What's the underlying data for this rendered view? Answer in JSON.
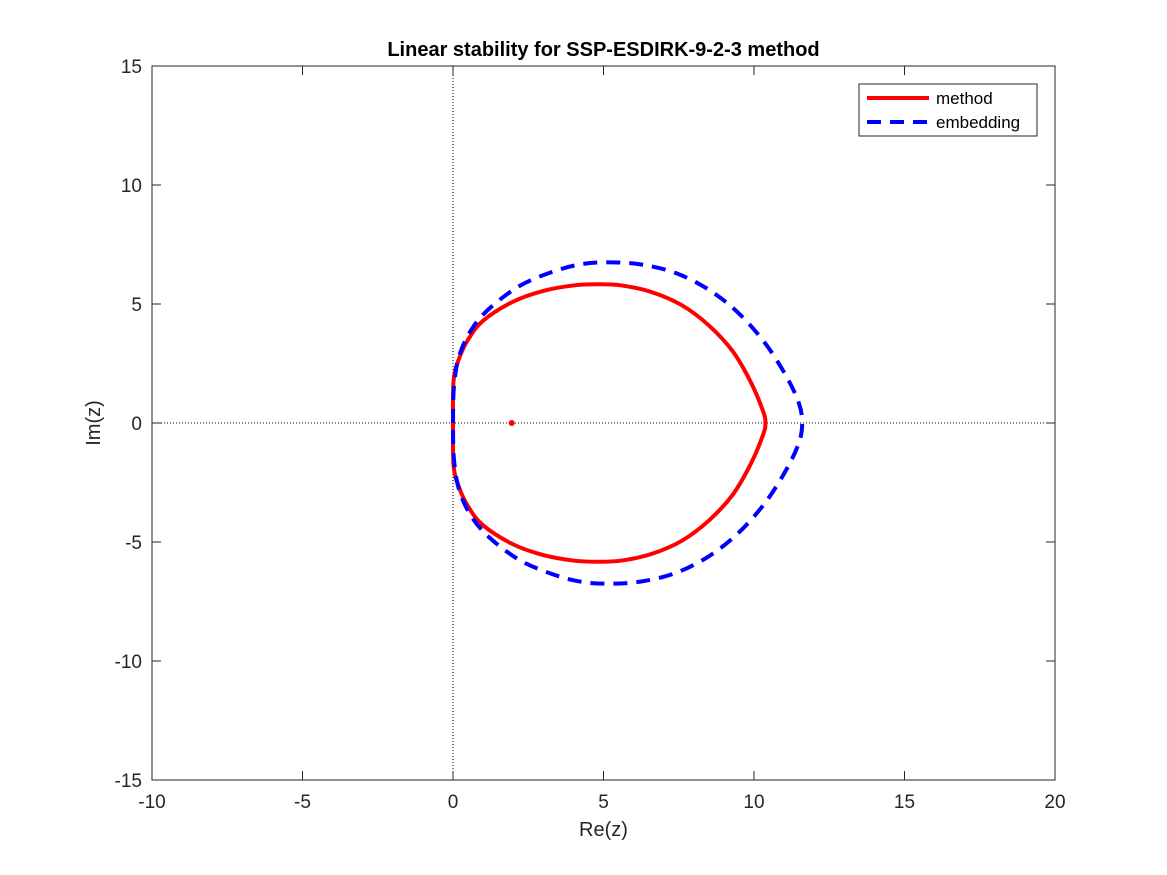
{
  "chart_data": {
    "type": "line",
    "title": "Linear stability for SSP-ESDIRK-9-2-3 method",
    "xlabel": "Re(z)",
    "ylabel": "Im(z)",
    "xlim": [
      -10,
      20
    ],
    "ylim": [
      -15,
      15
    ],
    "xticks": [
      -10,
      -5,
      0,
      5,
      10,
      15,
      20
    ],
    "yticks": [
      -15,
      -10,
      -5,
      0,
      5,
      10,
      15
    ],
    "xtick_labels": [
      "-10",
      "-5",
      "0",
      "5",
      "10",
      "15",
      "20"
    ],
    "ytick_labels": [
      "-15",
      "-10",
      "-5",
      "0",
      "5",
      "10",
      "15"
    ],
    "grid": false,
    "legend_position": "top-right",
    "reference_lines": [
      {
        "orientation": "vertical",
        "value": 0,
        "style": "dotted"
      },
      {
        "orientation": "horizontal",
        "value": 0,
        "style": "dotted"
      }
    ],
    "series": [
      {
        "name": "method",
        "color": "#ff0000",
        "style": "solid",
        "points": [
          [
            0,
            0
          ],
          [
            0.02,
            1.8
          ],
          [
            0.2,
            2.7
          ],
          [
            0.5,
            3.5
          ],
          [
            1.0,
            4.3
          ],
          [
            2.0,
            5.1
          ],
          [
            3.0,
            5.55
          ],
          [
            4.0,
            5.78
          ],
          [
            4.8,
            5.83
          ],
          [
            5.6,
            5.78
          ],
          [
            6.6,
            5.5
          ],
          [
            7.6,
            4.95
          ],
          [
            8.5,
            4.1
          ],
          [
            9.3,
            3.0
          ],
          [
            9.9,
            1.7
          ],
          [
            10.3,
            0.5
          ],
          [
            10.38,
            0
          ],
          [
            10.3,
            -0.5
          ],
          [
            9.9,
            -1.7
          ],
          [
            9.3,
            -3.0
          ],
          [
            8.5,
            -4.1
          ],
          [
            7.6,
            -4.95
          ],
          [
            6.6,
            -5.5
          ],
          [
            5.6,
            -5.78
          ],
          [
            4.8,
            -5.83
          ],
          [
            4.0,
            -5.78
          ],
          [
            3.0,
            -5.55
          ],
          [
            2.0,
            -5.1
          ],
          [
            1.0,
            -4.3
          ],
          [
            0.5,
            -3.5
          ],
          [
            0.2,
            -2.7
          ],
          [
            0.02,
            -1.8
          ],
          [
            0,
            0
          ]
        ]
      },
      {
        "name": "embedding",
        "color": "#0000ff",
        "style": "dashed",
        "points": [
          [
            0,
            0
          ],
          [
            0.03,
            1.5
          ],
          [
            0.2,
            2.8
          ],
          [
            0.6,
            3.9
          ],
          [
            1.2,
            4.8
          ],
          [
            2.2,
            5.75
          ],
          [
            3.3,
            6.35
          ],
          [
            4.3,
            6.68
          ],
          [
            5.3,
            6.75
          ],
          [
            6.3,
            6.65
          ],
          [
            7.4,
            6.3
          ],
          [
            8.5,
            5.6
          ],
          [
            9.5,
            4.6
          ],
          [
            10.4,
            3.3
          ],
          [
            11.1,
            1.9
          ],
          [
            11.5,
            0.8
          ],
          [
            11.6,
            0
          ],
          [
            11.5,
            -0.8
          ],
          [
            11.1,
            -1.9
          ],
          [
            10.4,
            -3.3
          ],
          [
            9.5,
            -4.6
          ],
          [
            8.5,
            -5.6
          ],
          [
            7.4,
            -6.3
          ],
          [
            6.3,
            -6.65
          ],
          [
            5.3,
            -6.75
          ],
          [
            4.3,
            -6.68
          ],
          [
            3.3,
            -6.35
          ],
          [
            2.2,
            -5.75
          ],
          [
            1.2,
            -4.8
          ],
          [
            0.6,
            -3.9
          ],
          [
            0.2,
            -2.8
          ],
          [
            0.03,
            -1.5
          ],
          [
            0,
            0
          ]
        ]
      }
    ],
    "markers": [
      {
        "x": 1.95,
        "y": 0,
        "color": "#ff0000"
      }
    ]
  }
}
